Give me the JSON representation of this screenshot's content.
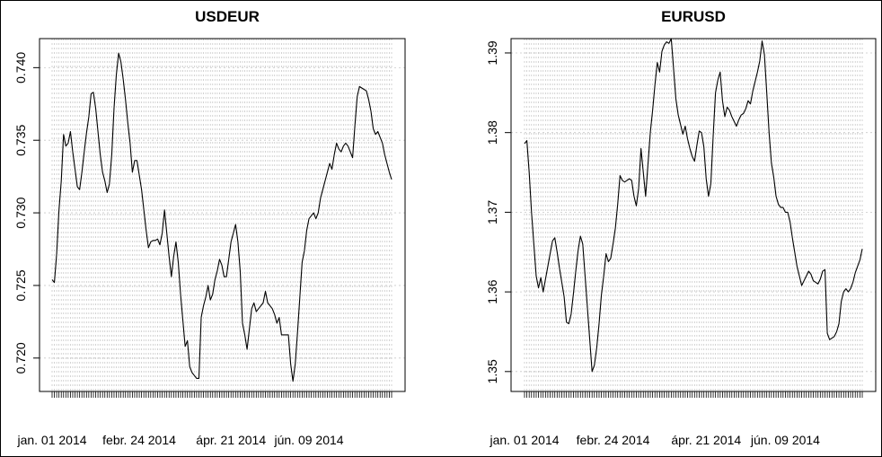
{
  "chart_data": [
    {
      "type": "line",
      "title": "USDEUR",
      "xlabel": "",
      "ylabel": "",
      "grid": true,
      "ylim": [
        0.7177,
        0.742
      ],
      "x_tick_labels": [
        "jan. 01 2014",
        "febr. 24 2014",
        "ápr. 21 2014",
        "jún. 09 2014"
      ],
      "x_tick_index": [
        0,
        38,
        78,
        112
      ],
      "y_ticks": [
        0.72,
        0.725,
        0.73,
        0.735,
        0.74
      ],
      "y_tick_labels": [
        "0.720",
        "0.725",
        "0.730",
        "0.735",
        "0.740"
      ],
      "series": [
        {
          "values": [
            0.7254,
            0.7252,
            0.7272,
            0.7302,
            0.7322,
            0.7354,
            0.7346,
            0.7348,
            0.7356,
            0.7342,
            0.733,
            0.7318,
            0.7316,
            0.7328,
            0.7342,
            0.7355,
            0.7366,
            0.7382,
            0.7383,
            0.7372,
            0.7356,
            0.734,
            0.7328,
            0.7322,
            0.7314,
            0.732,
            0.734,
            0.7372,
            0.7395,
            0.741,
            0.7404,
            0.7392,
            0.7378,
            0.7362,
            0.7348,
            0.7328,
            0.7336,
            0.7336,
            0.7326,
            0.7316,
            0.7302,
            0.7288,
            0.7276,
            0.728,
            0.7281,
            0.7281,
            0.7282,
            0.7278,
            0.7286,
            0.7302,
            0.7286,
            0.727,
            0.7256,
            0.727,
            0.728,
            0.7266,
            0.7244,
            0.7226,
            0.7208,
            0.7212,
            0.7194,
            0.719,
            0.7188,
            0.7186,
            0.7186,
            0.7228,
            0.7236,
            0.7242,
            0.725,
            0.724,
            0.7244,
            0.7254,
            0.726,
            0.7268,
            0.7264,
            0.7256,
            0.7256,
            0.7268,
            0.728,
            0.7286,
            0.7292,
            0.728,
            0.726,
            0.7224,
            0.7216,
            0.7206,
            0.722,
            0.7234,
            0.7238,
            0.7232,
            0.7234,
            0.7236,
            0.7238,
            0.7246,
            0.7238,
            0.7236,
            0.7234,
            0.723,
            0.7224,
            0.7228,
            0.7216,
            0.7216,
            0.7216,
            0.7216,
            0.7196,
            0.7184,
            0.7196,
            0.7218,
            0.7242,
            0.7266,
            0.7274,
            0.7288,
            0.7296,
            0.7298,
            0.73,
            0.7296,
            0.73,
            0.731,
            0.7316,
            0.7322,
            0.7328,
            0.7334,
            0.733,
            0.734,
            0.7348,
            0.7344,
            0.7342,
            0.7346,
            0.7348,
            0.7346,
            0.7342,
            0.7338,
            0.736,
            0.738,
            0.7387,
            0.7386,
            0.7385,
            0.7384,
            0.7378,
            0.737,
            0.7358,
            0.7354,
            0.7356,
            0.7352,
            0.7348,
            0.734,
            0.7334,
            0.7328,
            0.7323
          ]
        }
      ]
    },
    {
      "type": "line",
      "title": "EURUSD",
      "xlabel": "",
      "ylabel": "",
      "grid": true,
      "ylim": [
        1.3475,
        1.3918
      ],
      "x_tick_labels": [
        "jan. 01 2014",
        "febr. 24 2014",
        "ápr. 21 2014",
        "jún. 09 2014"
      ],
      "x_tick_index": [
        0,
        38,
        78,
        112
      ],
      "y_ticks": [
        1.35,
        1.36,
        1.37,
        1.38,
        1.39
      ],
      "y_tick_labels": [
        "1.35",
        "1.36",
        "1.37",
        "1.38",
        "1.39"
      ],
      "series": [
        {
          "values": [
            1.3786,
            1.379,
            1.375,
            1.37,
            1.366,
            1.362,
            1.3605,
            1.3618,
            1.36,
            1.3616,
            1.3632,
            1.3648,
            1.3664,
            1.3668,
            1.365,
            1.363,
            1.3612,
            1.3594,
            1.3562,
            1.356,
            1.3572,
            1.3598,
            1.3626,
            1.3652,
            1.367,
            1.366,
            1.362,
            1.358,
            1.354,
            1.35,
            1.3508,
            1.353,
            1.356,
            1.3596,
            1.362,
            1.3648,
            1.3638,
            1.3642,
            1.366,
            1.368,
            1.371,
            1.3746,
            1.374,
            1.3738,
            1.374,
            1.3742,
            1.374,
            1.372,
            1.3708,
            1.373,
            1.378,
            1.375,
            1.372,
            1.376,
            1.38,
            1.3828,
            1.386,
            1.3888,
            1.3876,
            1.3902,
            1.391,
            1.3914,
            1.3912,
            1.3918,
            1.388,
            1.3842,
            1.3822,
            1.381,
            1.3798,
            1.3808,
            1.3792,
            1.378,
            1.377,
            1.3764,
            1.3784,
            1.3802,
            1.38,
            1.3782,
            1.3742,
            1.372,
            1.3736,
            1.3796,
            1.385,
            1.3866,
            1.3876,
            1.384,
            1.382,
            1.3832,
            1.3828,
            1.382,
            1.3814,
            1.3808,
            1.3816,
            1.3822,
            1.3824,
            1.383,
            1.384,
            1.3836,
            1.3852,
            1.3864,
            1.3876,
            1.389,
            1.3915,
            1.3898,
            1.385,
            1.38,
            1.3762,
            1.3744,
            1.372,
            1.371,
            1.3706,
            1.3706,
            1.37,
            1.37,
            1.3688,
            1.3668,
            1.365,
            1.3632,
            1.362,
            1.3608,
            1.3614,
            1.362,
            1.3626,
            1.3622,
            1.3614,
            1.3612,
            1.361,
            1.3616,
            1.3626,
            1.3628,
            1.3548,
            1.354,
            1.3542,
            1.3544,
            1.355,
            1.356,
            1.3588,
            1.36,
            1.3604,
            1.36,
            1.3604,
            1.3612,
            1.3624,
            1.3632,
            1.364,
            1.3654
          ]
        }
      ]
    }
  ]
}
